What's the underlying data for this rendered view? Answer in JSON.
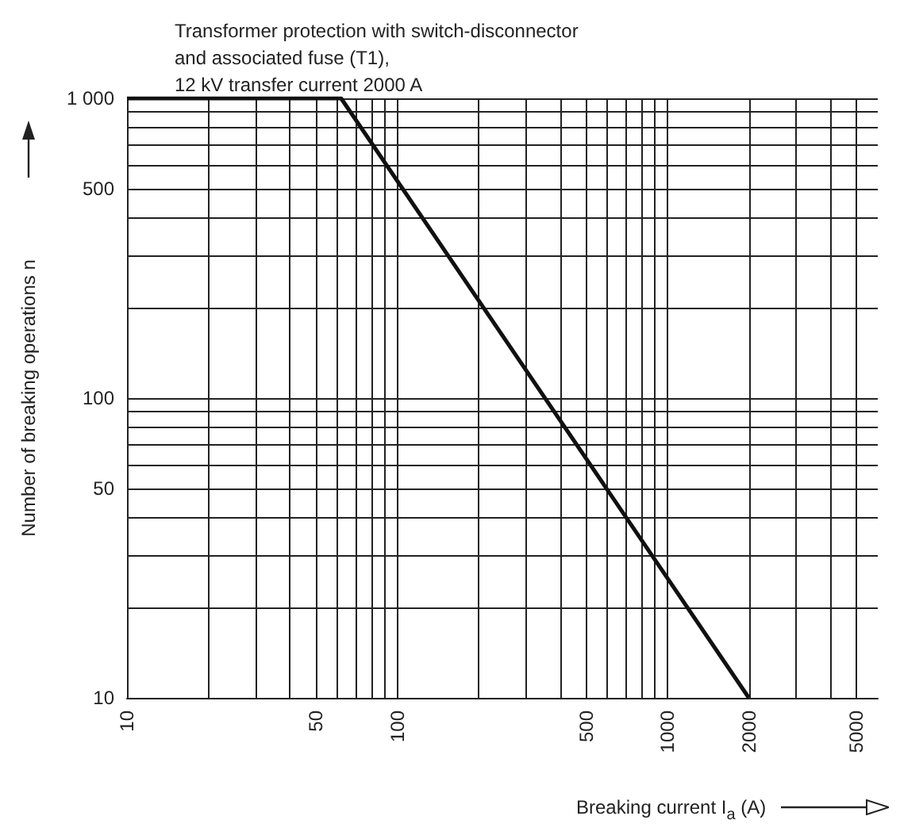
{
  "chart_data": {
    "type": "line",
    "title": "Transformer protection with switch-disconnector\nand associated fuse (T1),\n12 kV transfer current 2000 A",
    "xlabel": "Breaking current I$_{a}$ (A)",
    "ylabel": "Number of breaking operations n",
    "x": [
      10,
      62,
      2000
    ],
    "series": [
      {
        "color": "#111111",
        "values": [
          1000,
          1000,
          10
        ]
      }
    ],
    "log": "xy",
    "grid": true,
    "marker": "none",
    "line_style": "solid",
    "xlim": [
      10,
      6000
    ],
    "xticks": [
      10,
      {
        "value": 20,
        "label": null
      },
      {
        "value": 30,
        "label": null
      },
      {
        "value": 40,
        "label": null
      },
      50,
      {
        "value": 60,
        "label": null
      },
      {
        "value": 70,
        "label": null
      },
      {
        "value": 80,
        "label": null
      },
      {
        "value": 90,
        "label": null
      },
      100,
      {
        "value": 200,
        "label": null
      },
      {
        "value": 300,
        "label": null
      },
      {
        "value": 400,
        "label": null
      },
      500,
      {
        "value": 600,
        "label": null
      },
      {
        "value": 700,
        "label": null
      },
      {
        "value": 800,
        "label": null
      },
      {
        "value": 900,
        "label": null
      },
      1000,
      2000,
      {
        "value": 3000,
        "label": null
      },
      {
        "value": 4000,
        "label": null
      },
      5000
    ],
    "ylim": [
      10,
      1000
    ],
    "yticks": [
      10,
      {
        "value": 20,
        "label": null
      },
      {
        "value": 30,
        "label": null
      },
      {
        "value": 40,
        "label": null
      },
      50,
      {
        "value": 60,
        "label": null
      },
      {
        "value": 70,
        "label": null
      },
      {
        "value": 80,
        "label": null
      },
      {
        "value": 90,
        "label": null
      },
      100,
      {
        "value": 200,
        "label": null
      },
      {
        "value": 300,
        "label": null
      },
      {
        "value": 400,
        "label": null
      },
      500,
      {
        "value": 600,
        "label": null
      },
      {
        "value": 700,
        "label": null
      },
      {
        "value": 800,
        "label": null
      },
      {
        "value": 900,
        "label": null
      },
      {
        "value": 1000,
        "label": "1 000"
      }
    ]
  }
}
